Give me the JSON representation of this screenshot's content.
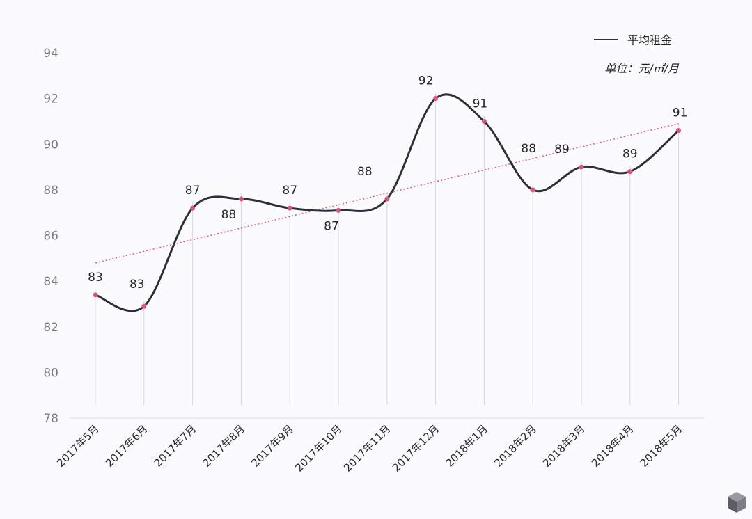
{
  "chart_data": {
    "type": "line",
    "categories": [
      "2017年5月",
      "2017年6月",
      "2017年7月",
      "2017年8月",
      "2017年9月",
      "2017年10月",
      "2017年11月",
      "2017年12月",
      "2018年1月",
      "2018年2月",
      "2018年3月",
      "2018年4月",
      "2018年5月"
    ],
    "series": [
      {
        "name": "平均租金",
        "values": [
          83.4,
          82.9,
          87.2,
          87.6,
          87.2,
          87.1,
          87.6,
          92.0,
          91.0,
          88.0,
          89.0,
          88.8,
          90.6
        ],
        "data_labels": [
          "83",
          "83",
          "87",
          "88",
          "87",
          "87",
          "88",
          "92",
          "91",
          "88",
          "89",
          "89",
          "91"
        ]
      }
    ],
    "trendline": {
      "start": 84.8,
      "end": 90.9
    },
    "ylim": [
      78,
      94
    ],
    "yticks": [
      "78",
      "80",
      "82",
      "84",
      "86",
      "88",
      "90",
      "92",
      "94"
    ],
    "unit": "单位：元/㎡/月",
    "legend_position": "top-right",
    "grid": false,
    "colors": {
      "line": "#2d2f3c",
      "marker": "#d9567a",
      "trend": "#d9567a",
      "droplines": "#d6d6de",
      "axis": "#dcdce4"
    }
  }
}
